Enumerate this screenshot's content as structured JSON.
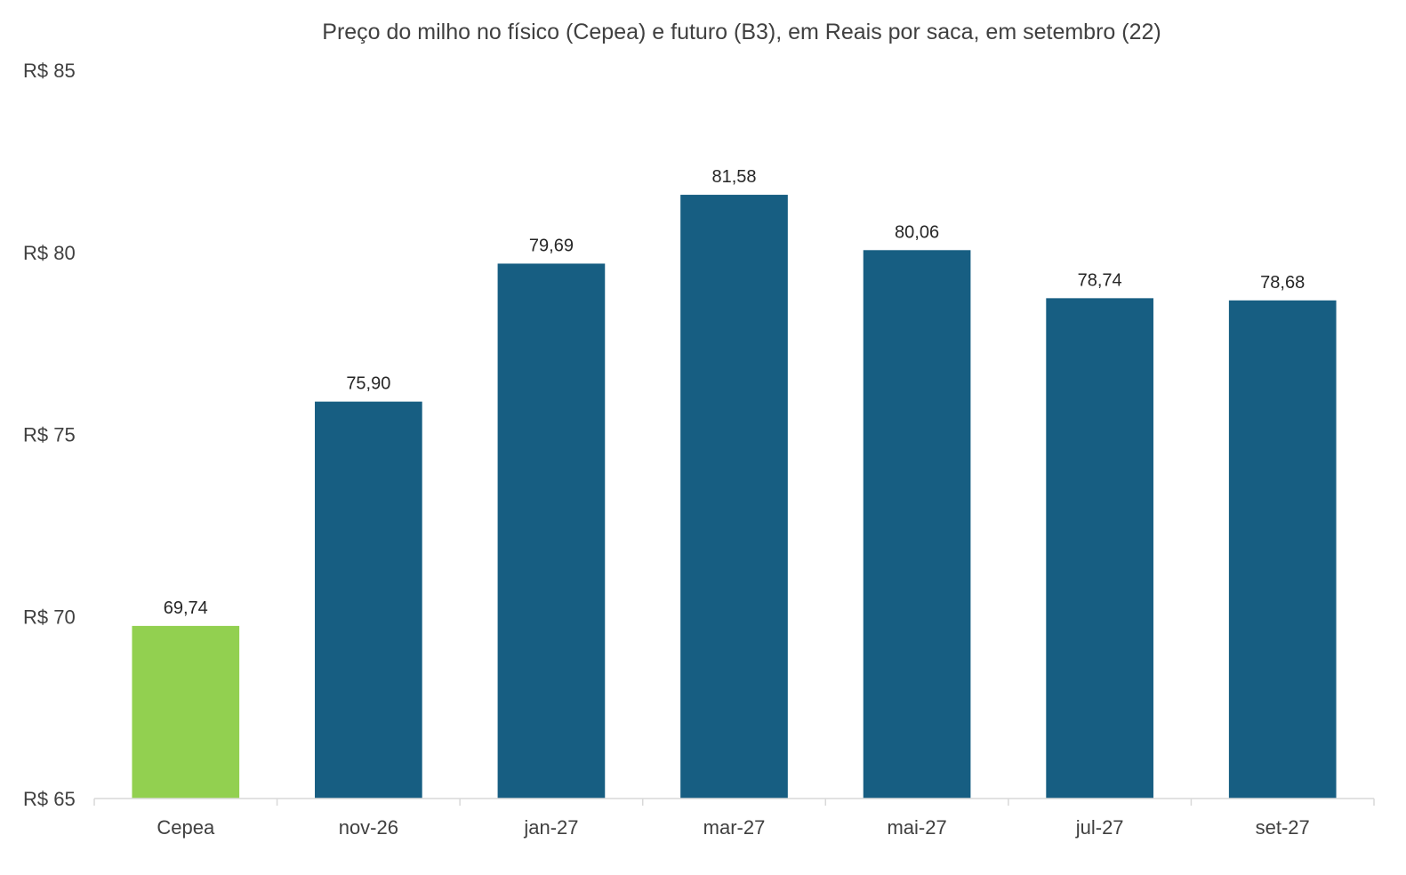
{
  "chart_data": {
    "type": "bar",
    "title": "Preço do milho no físico (Cepea) e futuro (B3), em Reais por saca, em setembro (22)",
    "xlabel": "",
    "ylabel": "",
    "categories": [
      "Cepea",
      "nov-26",
      "jan-27",
      "mar-27",
      "mai-27",
      "jul-27",
      "set-27"
    ],
    "values": [
      69.74,
      75.9,
      79.69,
      81.58,
      80.06,
      78.74,
      78.68
    ],
    "data_labels": [
      "69,74",
      "75,90",
      "79,69",
      "81,58",
      "80,06",
      "78,74",
      "78,68"
    ],
    "ylim": [
      65,
      85
    ],
    "yticks": [
      65,
      70,
      75,
      80,
      85
    ],
    "ytick_labels": [
      "R$ 65",
      "R$ 70",
      "R$ 75",
      "R$ 80",
      "R$ 85"
    ],
    "grid": false,
    "legend": "none",
    "colors": {
      "highlight": "#92D050",
      "bar": "#175E82",
      "axis": "#D9D9D9",
      "text": "#404040"
    },
    "highlight_categories": [
      "Cepea"
    ]
  }
}
